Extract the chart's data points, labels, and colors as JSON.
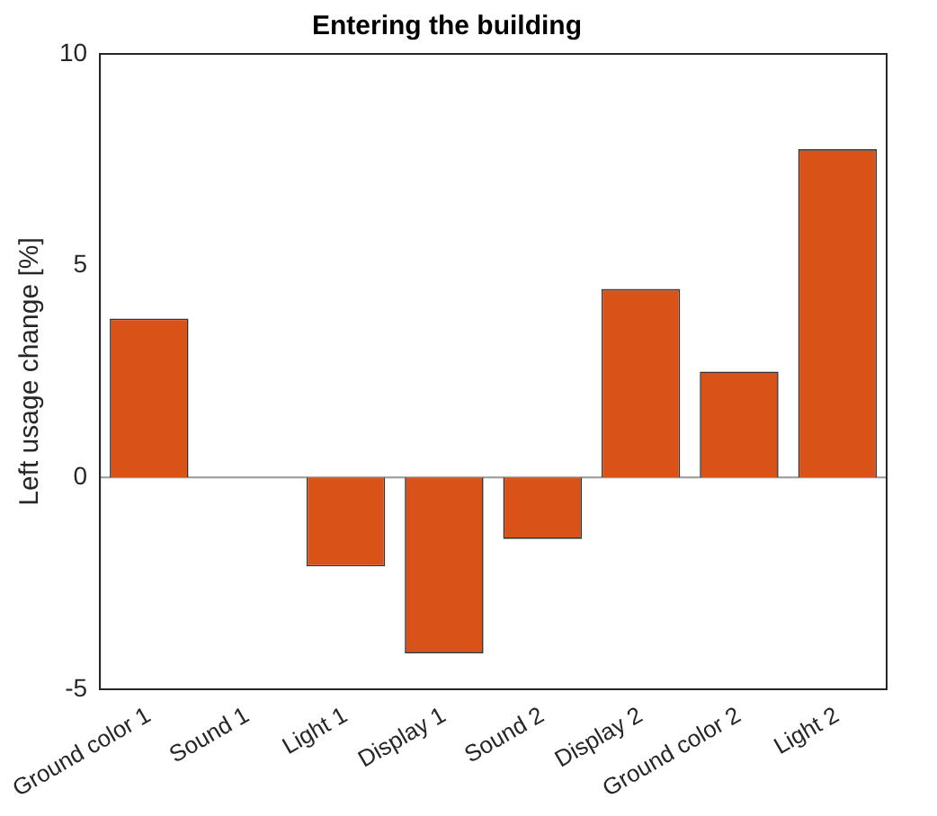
{
  "chart_data": {
    "type": "bar",
    "title": "Entering the building",
    "ylabel": "Left usage change [%]",
    "categories": [
      "Ground color 1",
      "Sound 1",
      "Light 1",
      "Display 1",
      "Sound 2",
      "Display 2",
      "Ground color 2",
      "Light 2"
    ],
    "values": [
      3.75,
      0,
      -2.1,
      -4.15,
      -1.45,
      4.45,
      2.5,
      7.75
    ],
    "color": "#d95319",
    "ylim": [
      -5,
      10
    ],
    "yticks": [
      -5,
      0,
      5,
      10
    ],
    "grid": false,
    "legend": false,
    "ref_lines": [
      {
        "axis": "y",
        "value": 0,
        "color": "#999999"
      }
    ]
  }
}
